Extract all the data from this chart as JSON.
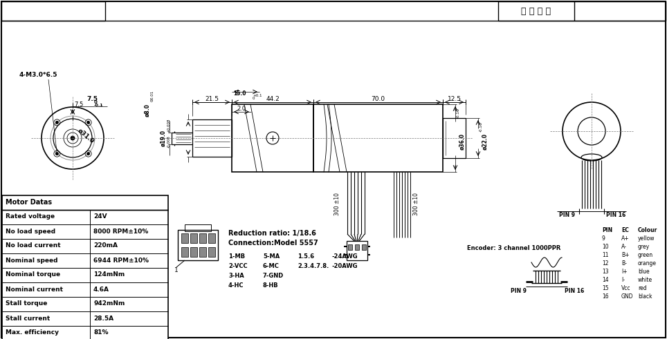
{
  "customer_model_label": "客 户 型 号",
  "motor_data": [
    [
      "Motor Datas",
      ""
    ],
    [
      "Rated voltage",
      "24V"
    ],
    [
      "No load speed",
      "8000 RPM±10%"
    ],
    [
      "No load current",
      "220mA"
    ],
    [
      "Nominal speed",
      "6944 RPM±10%"
    ],
    [
      "Nominal torque",
      "124mNm"
    ],
    [
      "Nominal current",
      "4.6A"
    ],
    [
      "Stall torque",
      "942mNm"
    ],
    [
      "Stall current",
      "28.5A"
    ],
    [
      "Max. efficiency",
      "81%"
    ]
  ],
  "reduction_ratio": "Reduction ratio: 1/18.6",
  "connection_model": "Connection:Model 5557",
  "wiring": [
    [
      "1-MB",
      "5-MA",
      "1.5.6",
      "-24AWG"
    ],
    [
      "2-VCC",
      "6-MC",
      "2.3.4.7.8.",
      "-20AWG"
    ],
    [
      "3-HA",
      "7-GND",
      "",
      ""
    ],
    [
      "4-HC",
      "8-HB",
      "",
      ""
    ]
  ],
  "encoder_label": "Encoder: 3 channel 1000PPR",
  "pin_table_header": [
    "PIN",
    "EC",
    "Colour"
  ],
  "pin_table": [
    [
      "9",
      "A+",
      "yellow"
    ],
    [
      "10",
      "A-",
      "grey"
    ],
    [
      "11",
      "B+",
      "green"
    ],
    [
      "12",
      "B-",
      "orange"
    ],
    [
      "13",
      "I+",
      "blue"
    ],
    [
      "14",
      "I-",
      "white"
    ],
    [
      "15",
      "Vcc",
      "red"
    ],
    [
      "16",
      "GND",
      "black"
    ]
  ],
  "bg_color": "#ffffff"
}
